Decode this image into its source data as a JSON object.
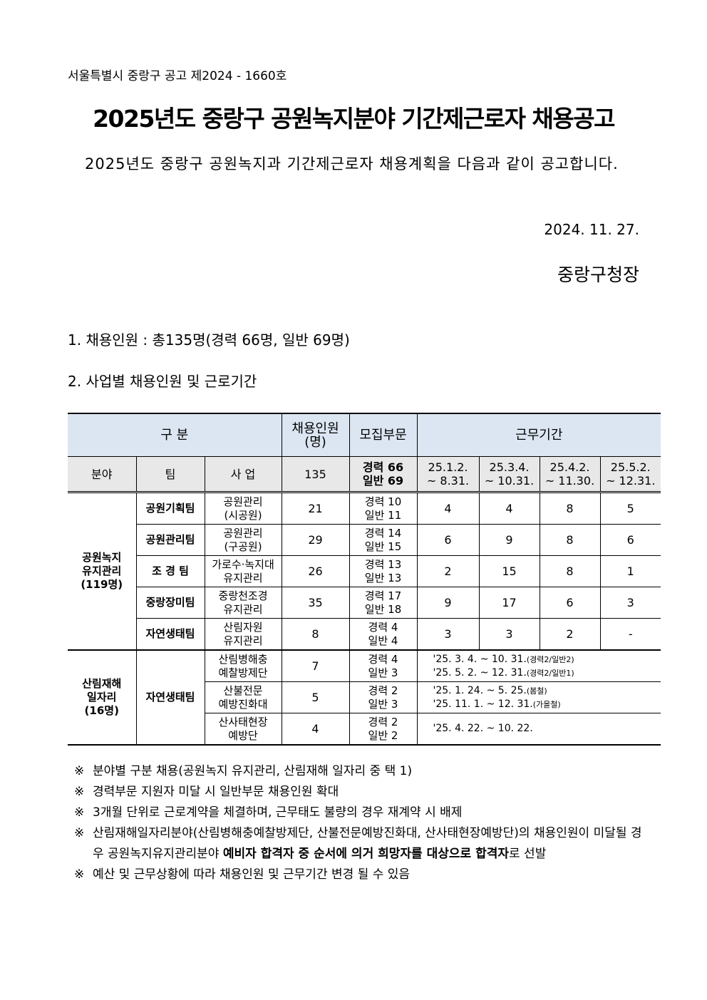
{
  "notice_number": "서울특별시 중랑구 공고 제2024 - 1660호",
  "title": "2025년도 중랑구 공원녹지분야 기간제근로자 채용공고",
  "intro": "2025년도 중랑구 공원녹지과 기간제근로자 채용계획을 다음과 같이 공고합니다.",
  "date": "2024. 11. 27.",
  "issuer": "중랑구청장",
  "section1": "1. 채용인원 : 총135명(경력 66명, 일반 69명)",
  "section2": "2. 사업별 채용인원 및 근로기간",
  "table": {
    "header": {
      "category": "구   분",
      "headcount": "채용인원 (명)",
      "recruit": "모집부문",
      "period": "근무기간"
    },
    "subheader": {
      "field": "분야",
      "team": "팀",
      "project": "사 업",
      "total": "135",
      "recruit_l1": "경력 66",
      "recruit_l2": "일반 69",
      "periods": [
        [
          "25.1.2.",
          "~ 8.31."
        ],
        [
          "25.3.4.",
          "~ 10.31."
        ],
        [
          "25.4.2.",
          "~ 11.30."
        ],
        [
          "25.5.2.",
          "~ 12.31."
        ]
      ]
    },
    "group1": {
      "field": [
        "공원녹지",
        "유지관리",
        "(119명)"
      ],
      "rows": [
        {
          "team": "공원기획팀",
          "project": [
            "공원관리",
            "(시공원)"
          ],
          "count": "21",
          "recruit": [
            "경력 10",
            "일반 11"
          ],
          "periods": [
            "4",
            "4",
            "8",
            "5"
          ]
        },
        {
          "team": "공원관리팀",
          "project": [
            "공원관리",
            "(구공원)"
          ],
          "count": "29",
          "recruit": [
            "경력 14",
            "일반 15"
          ],
          "periods": [
            "6",
            "9",
            "8",
            "6"
          ]
        },
        {
          "team": "조 경 팀",
          "project": [
            "가로수·녹지대",
            "유지관리"
          ],
          "count": "26",
          "recruit": [
            "경력 13",
            "일반 13"
          ],
          "periods": [
            "2",
            "15",
            "8",
            "1"
          ]
        },
        {
          "team": "중랑장미팀",
          "project": [
            "중랑천조경",
            "유지관리"
          ],
          "count": "35",
          "recruit": [
            "경력 17",
            "일반 18"
          ],
          "periods": [
            "9",
            "17",
            "6",
            "3"
          ]
        },
        {
          "team": "자연생태팀",
          "project": [
            "산림자원",
            "유지관리"
          ],
          "count": "8",
          "recruit": [
            "경력 4",
            "일반 4"
          ],
          "periods": [
            "3",
            "3",
            "2",
            "-"
          ]
        }
      ]
    },
    "group2": {
      "field": [
        "산림재해",
        "일자리",
        "(16명)"
      ],
      "team": "자연생태팀",
      "rows": [
        {
          "project": [
            "산림병해충",
            "예찰방제단"
          ],
          "count": "7",
          "recruit": [
            "경력 4",
            "일반 3"
          ],
          "period": [
            [
              "'25. 3. 4. ~ 10. 31.",
              "(경력2/일반2)"
            ],
            [
              "'25. 5. 2. ~ 12. 31.",
              "(경력2/일반1)"
            ]
          ]
        },
        {
          "project": [
            "산불전문",
            "예방진화대"
          ],
          "count": "5",
          "recruit": [
            "경력 2",
            "일반 3"
          ],
          "period": [
            [
              "'25. 1. 24. ~ 5. 25.",
              "(봄철)"
            ],
            [
              "'25. 11. 1. ~  12. 31.",
              "(가을철)"
            ]
          ]
        },
        {
          "project": [
            "산사태현장",
            "예방단"
          ],
          "count": "4",
          "recruit": [
            "경력 2",
            "일반 2"
          ],
          "period": [
            [
              "'25. 4. 22. ~ 10. 22.",
              ""
            ]
          ]
        }
      ]
    }
  },
  "notes": [
    {
      "mark": "※",
      "text": "분야별 구분 채용(공원녹지 유지관리, 산림재해 일자리 중 택 1)"
    },
    {
      "mark": "※",
      "text": "경력부문 지원자 미달 시 일반부문 채용인원 확대"
    },
    {
      "mark": "※",
      "text": "3개월 단위로 근로계약을 체결하며, 근무태도 불량의 경우 재계약 시 배제"
    },
    {
      "mark": "※",
      "text": "산림재해일자리분야(산림병해충예찰방제단, 산불전문예방진화대, 산사태현장예방단)의 채용인원이 미달될 경우 공원녹지유지관리분야 ",
      "bold": "예비자 합격자 중 순서에 의거 희망자를 대상으로 합격자",
      "tail": "로 선발"
    },
    {
      "mark": "※",
      "text": "예산 및 근무상황에 따라 채용인원 및 근무기간 변경 될 수 있음"
    }
  ]
}
